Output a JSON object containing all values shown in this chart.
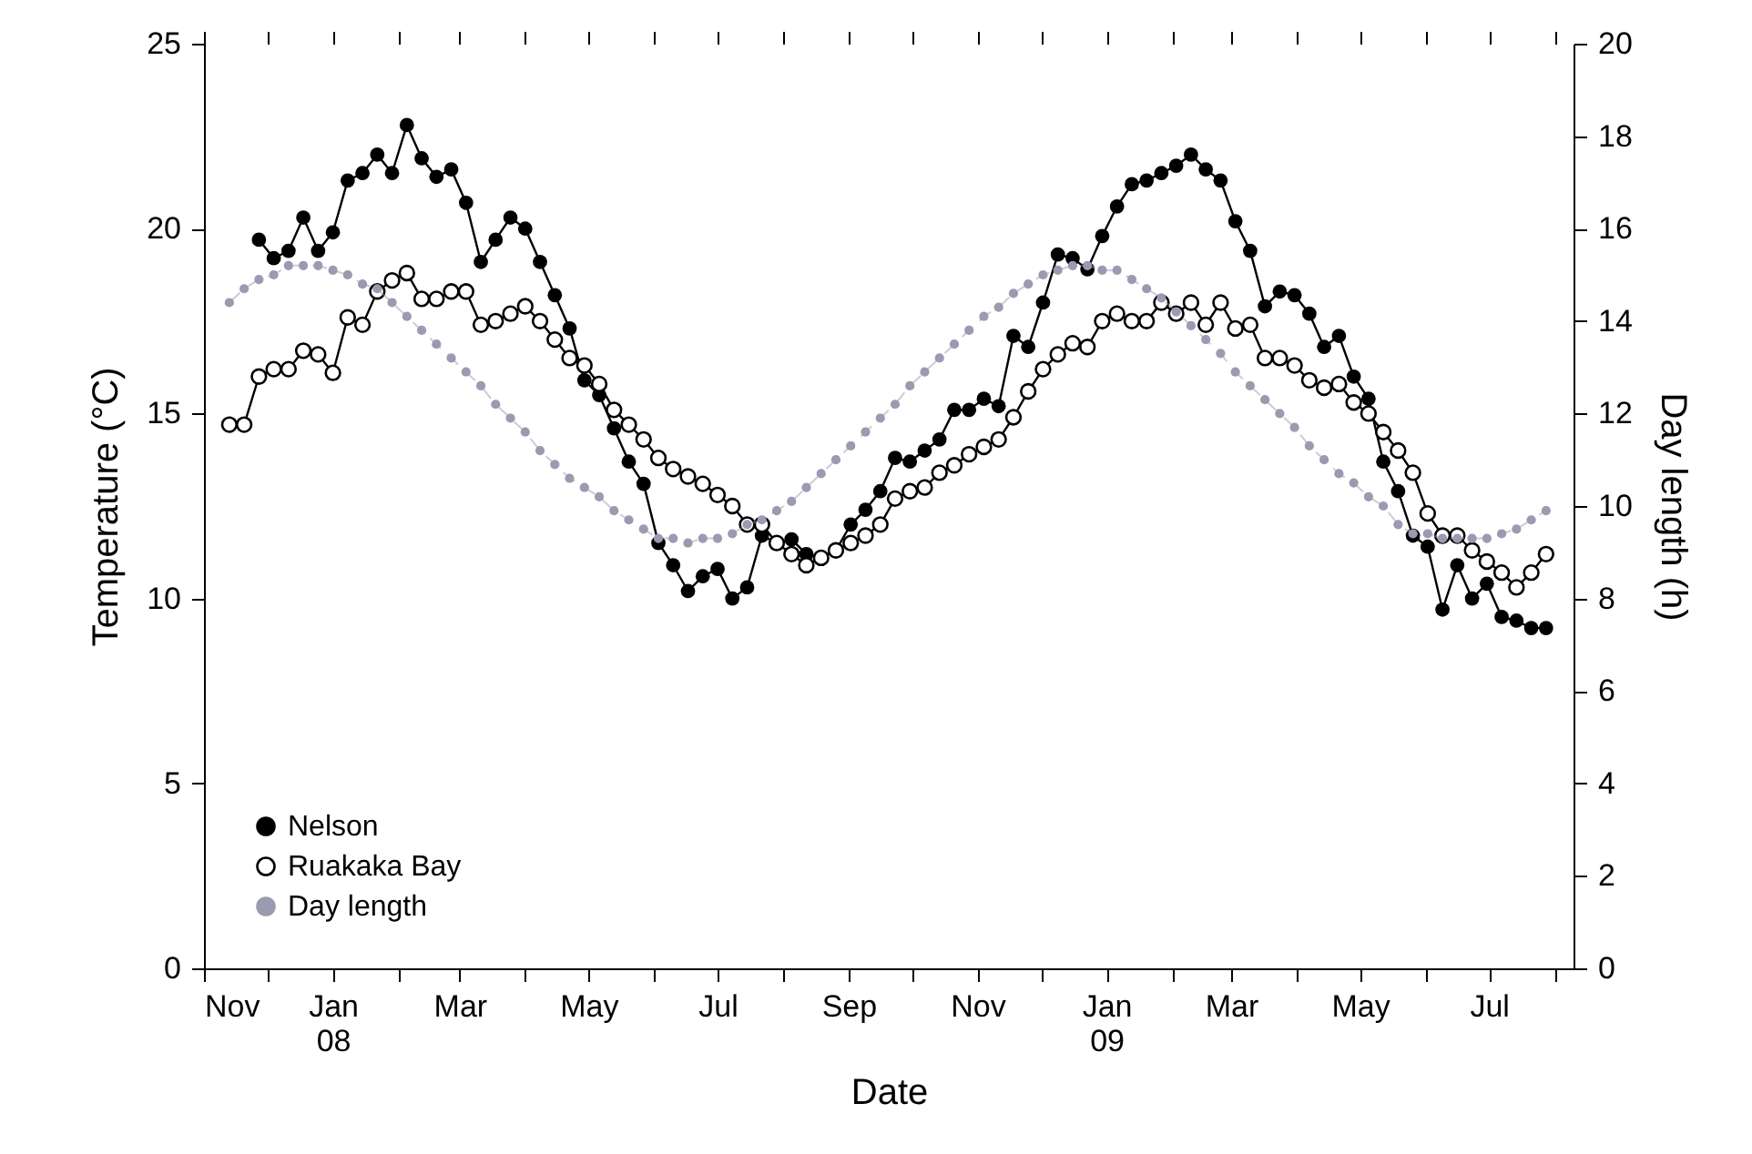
{
  "chart_data": {
    "type": "line",
    "xlabel": "Date",
    "ylabel": "Temperature (°C)",
    "y2label": "Day length (h)",
    "xlim": [
      "2007-11-01",
      "2009-08-10"
    ],
    "xticks": [
      {
        "value": "2007-11-01",
        "label": "Nov"
      },
      {
        "value": "2007-12-01",
        "label": null
      },
      {
        "value": "2008-01-01",
        "label": "Jan\n08"
      },
      {
        "value": "2008-02-01",
        "label": null
      },
      {
        "value": "2008-03-01",
        "label": "Mar"
      },
      {
        "value": "2008-04-01",
        "label": null
      },
      {
        "value": "2008-05-01",
        "label": "May"
      },
      {
        "value": "2008-06-01",
        "label": null
      },
      {
        "value": "2008-07-01",
        "label": "Jul"
      },
      {
        "value": "2008-08-01",
        "label": null
      },
      {
        "value": "2008-09-01",
        "label": "Sep"
      },
      {
        "value": "2008-10-01",
        "label": null
      },
      {
        "value": "2008-11-01",
        "label": "Nov"
      },
      {
        "value": "2008-12-01",
        "label": null
      },
      {
        "value": "2009-01-01",
        "label": "Jan\n09"
      },
      {
        "value": "2009-02-01",
        "label": null
      },
      {
        "value": "2009-03-01",
        "label": "Mar"
      },
      {
        "value": "2009-04-01",
        "label": null
      },
      {
        "value": "2009-05-01",
        "label": "May"
      },
      {
        "value": "2009-06-01",
        "label": null
      },
      {
        "value": "2009-07-01",
        "label": "Jul"
      },
      {
        "value": "2009-08-01",
        "label": null
      }
    ],
    "ylim": [
      0,
      25
    ],
    "yticks": [
      0,
      5,
      10,
      15,
      20,
      25
    ],
    "y2lim": [
      0,
      20
    ],
    "y2ticks": [
      0,
      2,
      4,
      6,
      8,
      10,
      12,
      14,
      16,
      18,
      20
    ],
    "grid": false,
    "legend": "bottom left",
    "series": [
      {
        "name": "Nelson",
        "color": "#000000",
        "marker": "circle",
        "line_style": "solid",
        "x": [
          "2007-11-27",
          "2007-12-04",
          "2007-12-11",
          "2007-12-18",
          "2007-12-25",
          "2008-01-01",
          "2008-01-08",
          "2008-01-15",
          "2008-01-22",
          "2008-01-29",
          "2008-02-05",
          "2008-02-12",
          "2008-02-19",
          "2008-02-26",
          "2008-03-04",
          "2008-03-11",
          "2008-03-18",
          "2008-03-25",
          "2008-04-01",
          "2008-04-08",
          "2008-04-15",
          "2008-04-22",
          "2008-04-29",
          "2008-05-06",
          "2008-05-13",
          "2008-05-20",
          "2008-05-27",
          "2008-06-03",
          "2008-06-10",
          "2008-06-17",
          "2008-06-24",
          "2008-07-01",
          "2008-07-08",
          "2008-07-15",
          "2008-07-22",
          "2008-07-29",
          "2008-08-05",
          "2008-08-12",
          "2008-08-19",
          "2008-08-26",
          "2008-09-02",
          "2008-09-09",
          "2008-09-16",
          "2008-09-23",
          "2008-09-30",
          "2008-10-07",
          "2008-10-14",
          "2008-10-21",
          "2008-10-28",
          "2008-11-04",
          "2008-11-11",
          "2008-11-18",
          "2008-11-25",
          "2008-12-02",
          "2008-12-09",
          "2008-12-16",
          "2008-12-23",
          "2008-12-30",
          "2009-01-06",
          "2009-01-13",
          "2009-01-20",
          "2009-01-27",
          "2009-02-03",
          "2009-02-10",
          "2009-02-17",
          "2009-02-24",
          "2009-03-03",
          "2009-03-10",
          "2009-03-17",
          "2009-03-24",
          "2009-03-31",
          "2009-04-07",
          "2009-04-14",
          "2009-04-21",
          "2009-04-28",
          "2009-05-05",
          "2009-05-12",
          "2009-05-19",
          "2009-05-26",
          "2009-06-02",
          "2009-06-09",
          "2009-06-16",
          "2009-06-23",
          "2009-06-30",
          "2009-07-07",
          "2009-07-14",
          "2009-07-21",
          "2009-07-28"
        ],
        "values": [
          19.7,
          19.2,
          19.4,
          20.3,
          19.4,
          19.9,
          21.3,
          21.5,
          22.0,
          21.5,
          22.8,
          21.9,
          21.4,
          21.6,
          20.7,
          19.1,
          19.7,
          20.3,
          20.0,
          19.1,
          18.2,
          17.3,
          15.9,
          15.5,
          14.6,
          13.7,
          13.1,
          11.5,
          10.9,
          10.2,
          10.6,
          10.8,
          10.0,
          10.3,
          11.7,
          11.5,
          11.6,
          11.2,
          11.1,
          11.3,
          12.0,
          12.4,
          12.9,
          13.8,
          13.7,
          14.0,
          14.3,
          15.1,
          15.1,
          15.4,
          15.2,
          17.1,
          16.8,
          18.0,
          19.3,
          19.2,
          18.9,
          19.8,
          20.6,
          21.2,
          21.3,
          21.5,
          21.7,
          22.0,
          21.6,
          21.3,
          20.2,
          19.4,
          17.9,
          18.3,
          18.2,
          17.7,
          16.8,
          17.1,
          16.0,
          15.4,
          13.7,
          12.9,
          11.7,
          11.4,
          9.7,
          10.9,
          10.0,
          10.4,
          9.5,
          9.4,
          9.2,
          9.2
        ]
      },
      {
        "name": "Ruakaka Bay",
        "color": "#000000",
        "marker": "circle",
        "line_style": "solid",
        "x": [
          "2007-11-13",
          "2007-11-20",
          "2007-11-27",
          "2007-12-04",
          "2007-12-11",
          "2007-12-18",
          "2007-12-25",
          "2008-01-01",
          "2008-01-08",
          "2008-01-15",
          "2008-01-22",
          "2008-01-29",
          "2008-02-05",
          "2008-02-12",
          "2008-02-19",
          "2008-02-26",
          "2008-03-04",
          "2008-03-11",
          "2008-03-18",
          "2008-03-25",
          "2008-04-01",
          "2008-04-08",
          "2008-04-15",
          "2008-04-22",
          "2008-04-29",
          "2008-05-06",
          "2008-05-13",
          "2008-05-20",
          "2008-05-27",
          "2008-06-03",
          "2008-06-10",
          "2008-06-17",
          "2008-06-24",
          "2008-07-01",
          "2008-07-08",
          "2008-07-15",
          "2008-07-22",
          "2008-07-29",
          "2008-08-05",
          "2008-08-12",
          "2008-08-19",
          "2008-08-26",
          "2008-09-02",
          "2008-09-09",
          "2008-09-16",
          "2008-09-23",
          "2008-09-30",
          "2008-10-07",
          "2008-10-14",
          "2008-10-21",
          "2008-10-28",
          "2008-11-04",
          "2008-11-11",
          "2008-11-18",
          "2008-11-25",
          "2008-12-02",
          "2008-12-09",
          "2008-12-16",
          "2008-12-23",
          "2008-12-30",
          "2009-01-06",
          "2009-01-13",
          "2009-01-20",
          "2009-01-27",
          "2009-02-03",
          "2009-02-10",
          "2009-02-17",
          "2009-02-24",
          "2009-03-03",
          "2009-03-10",
          "2009-03-17",
          "2009-03-24",
          "2009-03-31",
          "2009-04-07",
          "2009-04-14",
          "2009-04-21",
          "2009-04-28",
          "2009-05-05",
          "2009-05-12",
          "2009-05-19",
          "2009-05-26",
          "2009-06-02",
          "2009-06-09",
          "2009-06-16",
          "2009-06-23",
          "2009-06-30",
          "2009-07-07",
          "2009-07-14",
          "2009-07-21",
          "2009-07-28"
        ],
        "values": [
          14.7,
          14.7,
          16.0,
          16.2,
          16.2,
          16.7,
          16.6,
          16.1,
          17.6,
          17.4,
          18.3,
          18.6,
          18.8,
          18.1,
          18.1,
          18.3,
          18.3,
          17.4,
          17.5,
          17.7,
          17.9,
          17.5,
          17.0,
          16.5,
          16.3,
          15.8,
          15.1,
          14.7,
          14.3,
          13.8,
          13.5,
          13.3,
          13.1,
          12.8,
          12.5,
          12.0,
          12.0,
          11.5,
          11.2,
          10.9,
          11.1,
          11.3,
          11.5,
          11.7,
          12.0,
          12.7,
          12.9,
          13.0,
          13.4,
          13.6,
          13.9,
          14.1,
          14.3,
          14.9,
          15.6,
          16.2,
          16.6,
          16.9,
          16.8,
          17.5,
          17.7,
          17.5,
          17.5,
          18.0,
          17.7,
          18.0,
          17.4,
          18.0,
          17.3,
          17.4,
          16.5,
          16.5,
          16.3,
          15.9,
          15.7,
          15.8,
          15.3,
          15.0,
          14.5,
          14.0,
          13.4,
          12.3,
          11.7,
          11.7,
          11.3,
          11.0,
          10.7,
          10.3,
          10.7,
          11.2
        ]
      },
      {
        "name": "Day length",
        "color": "#9a9ab0",
        "marker": "circle",
        "line_style": "dashed",
        "axis": "y2",
        "x": [
          "2007-11-13",
          "2007-11-20",
          "2007-11-27",
          "2007-12-04",
          "2007-12-11",
          "2007-12-18",
          "2007-12-25",
          "2008-01-01",
          "2008-01-08",
          "2008-01-15",
          "2008-01-22",
          "2008-01-29",
          "2008-02-05",
          "2008-02-12",
          "2008-02-19",
          "2008-02-26",
          "2008-03-04",
          "2008-03-11",
          "2008-03-18",
          "2008-03-25",
          "2008-04-01",
          "2008-04-08",
          "2008-04-15",
          "2008-04-22",
          "2008-04-29",
          "2008-05-06",
          "2008-05-13",
          "2008-05-20",
          "2008-05-27",
          "2008-06-03",
          "2008-06-10",
          "2008-06-17",
          "2008-06-24",
          "2008-07-01",
          "2008-07-08",
          "2008-07-15",
          "2008-07-22",
          "2008-07-29",
          "2008-08-05",
          "2008-08-12",
          "2008-08-19",
          "2008-08-26",
          "2008-09-02",
          "2008-09-09",
          "2008-09-16",
          "2008-09-23",
          "2008-09-30",
          "2008-10-07",
          "2008-10-14",
          "2008-10-21",
          "2008-10-28",
          "2008-11-04",
          "2008-11-11",
          "2008-11-18",
          "2008-11-25",
          "2008-12-02",
          "2008-12-09",
          "2008-12-16",
          "2008-12-23",
          "2008-12-30",
          "2009-01-06",
          "2009-01-13",
          "2009-01-20",
          "2009-01-27",
          "2009-02-03",
          "2009-02-10",
          "2009-02-17",
          "2009-02-24",
          "2009-03-03",
          "2009-03-10",
          "2009-03-17",
          "2009-03-24",
          "2009-03-31",
          "2009-04-07",
          "2009-04-14",
          "2009-04-21",
          "2009-04-28",
          "2009-05-05",
          "2009-05-12",
          "2009-05-19",
          "2009-05-26",
          "2009-06-02",
          "2009-06-09",
          "2009-06-16",
          "2009-06-23",
          "2009-06-30",
          "2009-07-07",
          "2009-07-14",
          "2009-07-21",
          "2009-07-28"
        ],
        "values": [
          14.4,
          14.7,
          14.9,
          15.0,
          15.2,
          15.2,
          15.2,
          15.1,
          15.0,
          14.8,
          14.7,
          14.4,
          14.1,
          13.8,
          13.5,
          13.2,
          12.9,
          12.6,
          12.2,
          11.9,
          11.6,
          11.2,
          10.9,
          10.6,
          10.4,
          10.2,
          9.9,
          9.7,
          9.5,
          9.3,
          9.3,
          9.2,
          9.3,
          9.3,
          9.4,
          9.6,
          9.7,
          9.9,
          10.1,
          10.4,
          10.7,
          11.0,
          11.3,
          11.6,
          11.9,
          12.2,
          12.6,
          12.9,
          13.2,
          13.5,
          13.8,
          14.1,
          14.3,
          14.6,
          14.8,
          15.0,
          15.1,
          15.2,
          15.2,
          15.1,
          15.1,
          14.9,
          14.7,
          14.5,
          14.2,
          13.9,
          13.6,
          13.3,
          12.9,
          12.6,
          12.3,
          12.0,
          11.7,
          11.3,
          11.0,
          10.7,
          10.5,
          10.2,
          10.0,
          9.6,
          9.4,
          9.4,
          9.3,
          9.3,
          9.3,
          9.3,
          9.4,
          9.5,
          9.7,
          9.9
        ]
      }
    ]
  }
}
